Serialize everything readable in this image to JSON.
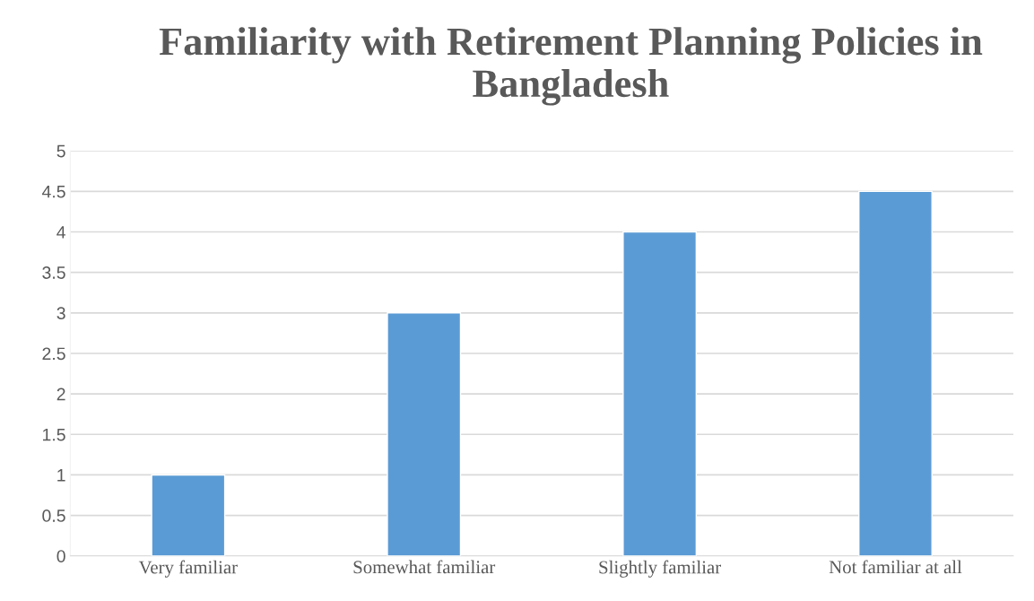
{
  "chart_data": {
    "type": "bar",
    "title": "Familiarity with Retirement Planning Policies in Bangladesh",
    "categories": [
      "Very familiar",
      "Somewhat familiar",
      "Slightly familiar",
      "Not familiar at all"
    ],
    "values": [
      1,
      3,
      4,
      4.5
    ],
    "color": "#5b9bd5",
    "ylim": [
      0,
      5
    ],
    "yticks": [
      0,
      0.5,
      1,
      1.5,
      2,
      2.5,
      3,
      3.5,
      4,
      4.5,
      5
    ],
    "grid": "y",
    "legend": false
  }
}
